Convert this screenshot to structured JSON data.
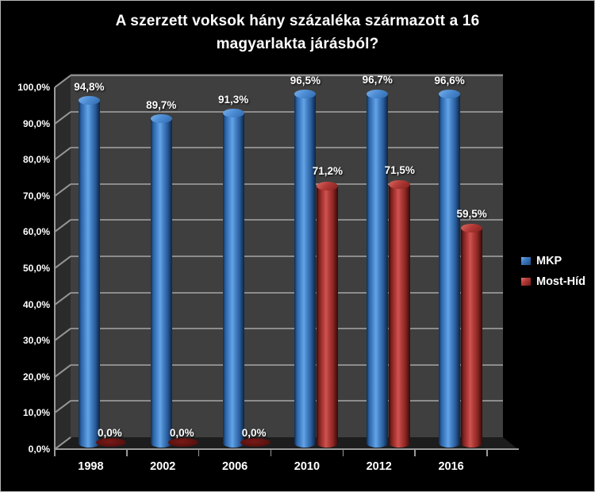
{
  "title": {
    "line1": "A szerzett voksok hány százaléka származott a 16",
    "line2": "magyarlakta járásból?"
  },
  "chart_data": {
    "type": "bar",
    "style": "3d-cylinder",
    "title": "A szerzett voksok hány százaléka származott a 16 magyarlakta járásból?",
    "categories": [
      "1998",
      "2002",
      "2006",
      "2010",
      "2012",
      "2016"
    ],
    "series": [
      {
        "name": "MKP",
        "color": "#4a8ad2",
        "values": [
          94.8,
          89.7,
          91.3,
          96.5,
          96.7,
          96.6
        ],
        "labels": [
          "94,8%",
          "89,7%",
          "91,3%",
          "96,5%",
          "96,7%",
          "96,6%"
        ]
      },
      {
        "name": "Most-Híd",
        "color": "#c0413f",
        "values": [
          0.0,
          0.0,
          0.0,
          71.2,
          71.5,
          59.5
        ],
        "labels": [
          "0,0%",
          "0,0%",
          "0,0%",
          "71,2%",
          "71,5%",
          "59,5%"
        ]
      }
    ],
    "ylim": [
      0,
      100
    ],
    "ytick_step": 10,
    "ytick_labels": [
      "0,0%",
      "10,0%",
      "20,0%",
      "30,0%",
      "40,0%",
      "50,0%",
      "60,0%",
      "70,0%",
      "80,0%",
      "90,0%",
      "100,0%"
    ],
    "grid": true,
    "legend_position": "right",
    "background_color": "#000000",
    "wall_color": "#3f3f3f",
    "gridline_color": "#8c8c8c",
    "label_color": "#ffffff"
  }
}
